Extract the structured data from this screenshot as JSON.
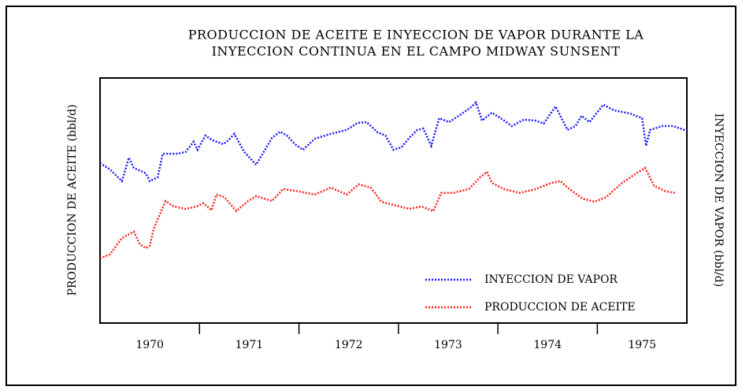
{
  "chart_data": {
    "type": "line",
    "title": [
      "PRODUCCION DE ACEITE E INYECCION DE VAPOR DURANTE LA",
      "INYECCION CONTINUA EN EL CAMPO MIDWAY SUNSENT"
    ],
    "y_label": "PRODUCCION DE ACEITE (bbl/d)",
    "y2_label": "INYECCION DE VAPOR  (bbl/d)",
    "categories": [
      "1970",
      "1971",
      "1972",
      "1973",
      "1974",
      "1975"
    ],
    "xlim": [
      1970,
      1975.9
    ],
    "xticks": [
      1971,
      1972,
      1973,
      1974,
      1975
    ],
    "ylim": [
      0,
      100
    ],
    "y2lim": [
      0,
      100
    ],
    "legend": "lower right",
    "series": [
      {
        "name": "INYECCION DE VAPOR",
        "color": "#1a1aff",
        "axis": "y2",
        "x": [
          1970.0,
          1970.1,
          1970.22,
          1970.29,
          1970.34,
          1970.46,
          1970.5,
          1970.58,
          1970.63,
          1970.78,
          1970.86,
          1970.94,
          1970.98,
          1971.06,
          1971.13,
          1971.24,
          1971.29,
          1971.35,
          1971.45,
          1971.57,
          1971.65,
          1971.73,
          1971.81,
          1971.88,
          1971.96,
          1972.04,
          1972.16,
          1972.32,
          1972.48,
          1972.59,
          1972.68,
          1972.79,
          1972.87,
          1972.95,
          1973.03,
          1973.11,
          1973.19,
          1973.25,
          1973.33,
          1973.41,
          1973.51,
          1973.63,
          1973.73,
          1973.78,
          1973.84,
          1973.94,
          1974.05,
          1974.14,
          1974.26,
          1974.38,
          1974.46,
          1974.58,
          1974.7,
          1974.78,
          1974.84,
          1974.92,
          1975.06,
          1975.17,
          1975.33,
          1975.45,
          1975.49,
          1975.53,
          1975.65,
          1975.76,
          1975.9
        ],
        "values": [
          65.3,
          62.7,
          57.9,
          67.5,
          63.3,
          61.1,
          57.9,
          59.5,
          69.1,
          69.1,
          69.8,
          74.0,
          70.7,
          76.5,
          74.6,
          73.0,
          74.6,
          77.2,
          69.8,
          64.6,
          70.1,
          75.6,
          78.1,
          76.5,
          73.0,
          70.7,
          75.2,
          77.2,
          78.8,
          81.7,
          82.0,
          77.8,
          76.5,
          70.7,
          71.7,
          75.6,
          78.8,
          79.4,
          72.3,
          83.6,
          82.0,
          85.2,
          88.1,
          90.0,
          82.6,
          85.9,
          83.0,
          80.4,
          83.0,
          82.6,
          81.4,
          88.4,
          78.8,
          80.4,
          84.6,
          82.0,
          89.1,
          86.8,
          85.5,
          83.6,
          72.3,
          78.8,
          80.4,
          80.4,
          78.5
        ]
      },
      {
        "name": "PRODUCCION DE ACEITE",
        "color": "#ff2020",
        "axis": "y",
        "x": [
          1970.0,
          1970.1,
          1970.22,
          1970.34,
          1970.4,
          1970.46,
          1970.5,
          1970.54,
          1970.66,
          1970.74,
          1970.86,
          1970.97,
          1971.04,
          1971.12,
          1971.17,
          1971.25,
          1971.37,
          1971.49,
          1971.57,
          1971.73,
          1971.84,
          1972.0,
          1972.16,
          1972.32,
          1972.48,
          1972.6,
          1972.72,
          1972.83,
          1972.95,
          1973.11,
          1973.23,
          1973.35,
          1973.43,
          1973.55,
          1973.71,
          1973.82,
          1973.89,
          1973.94,
          1974.06,
          1974.22,
          1974.38,
          1974.54,
          1974.63,
          1974.7,
          1974.85,
          1974.97,
          1975.09,
          1975.25,
          1975.37,
          1975.48,
          1975.57,
          1975.69,
          1975.79
        ],
        "values": [
          26.4,
          28.0,
          34.7,
          37.3,
          32.2,
          30.5,
          31.5,
          38.6,
          49.8,
          47.6,
          46.6,
          47.6,
          48.9,
          46.0,
          52.4,
          51.4,
          45.7,
          49.8,
          51.8,
          49.8,
          54.7,
          53.7,
          52.4,
          55.3,
          52.4,
          56.6,
          55.3,
          49.5,
          48.2,
          46.6,
          47.6,
          45.7,
          53.1,
          53.1,
          54.7,
          59.5,
          61.7,
          57.2,
          54.7,
          53.1,
          54.7,
          57.2,
          57.9,
          55.3,
          50.8,
          49.5,
          51.4,
          57.2,
          60.5,
          63.3,
          56.0,
          53.7,
          53.1
        ]
      }
    ]
  }
}
